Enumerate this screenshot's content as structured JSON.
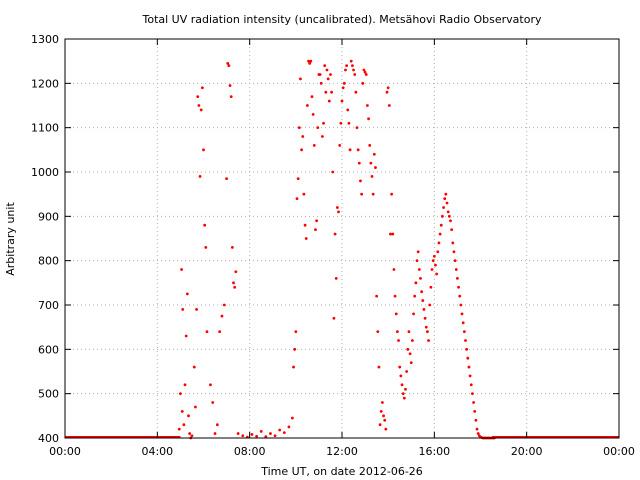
{
  "chart_data": {
    "type": "scatter",
    "title": "Total UV radiation intensity (uncalibrated). Metsähovi Radio Observatory",
    "xlabel": "Time UT, on date 2012-06-26",
    "ylabel": "Arbitrary unit",
    "xlim": [
      0,
      24
    ],
    "ylim": [
      400,
      1300
    ],
    "x_ticks": [
      {
        "value": 0,
        "label": "00:00"
      },
      {
        "value": 4,
        "label": "04:00"
      },
      {
        "value": 8,
        "label": "08:00"
      },
      {
        "value": 12,
        "label": "12:00"
      },
      {
        "value": 16,
        "label": "16:00"
      },
      {
        "value": 20,
        "label": "20:00"
      },
      {
        "value": 24,
        "label": "00:00"
      }
    ],
    "y_ticks": [
      400,
      500,
      600,
      700,
      800,
      900,
      1000,
      1100,
      1200,
      1300
    ],
    "grid": true,
    "legend": "none",
    "marker_color": "#ff0000",
    "series": [
      {
        "x_hours": [
          4.95,
          5.0,
          5.05,
          5.08,
          5.1,
          5.15,
          5.2,
          5.25,
          5.3,
          5.35,
          5.4,
          5.45,
          5.5,
          5.6,
          5.65,
          5.7,
          5.75,
          5.8,
          5.85,
          5.9,
          5.95,
          6.0,
          6.05,
          6.1,
          6.15,
          6.3,
          6.4,
          6.5,
          6.6,
          6.7,
          6.8,
          6.9,
          7.0,
          7.05,
          7.1,
          7.15,
          7.2,
          7.25,
          7.3,
          7.35,
          7.4,
          7.5,
          7.7,
          7.9,
          8.1,
          8.3,
          8.5,
          8.7,
          8.9,
          9.1,
          9.3,
          9.5,
          9.7,
          9.85,
          9.9,
          9.95,
          10.0,
          10.05,
          10.1,
          10.15,
          10.2,
          10.25,
          10.3,
          10.35,
          10.4,
          10.45,
          10.5,
          10.55,
          10.6,
          10.65,
          10.7,
          10.75,
          10.8,
          10.85,
          10.9,
          10.95,
          11.0,
          11.05,
          11.1,
          11.15,
          11.2,
          11.25,
          11.3,
          11.35,
          11.4,
          11.45,
          11.5,
          11.55,
          11.6,
          11.65,
          11.7,
          11.75,
          11.8,
          11.85,
          11.9,
          11.95,
          12.0,
          12.05,
          12.1,
          12.15,
          12.2,
          12.25,
          12.3,
          12.35,
          12.4,
          12.45,
          12.5,
          12.55,
          12.6,
          12.65,
          12.7,
          12.75,
          12.8,
          12.85,
          12.9,
          12.95,
          13.0,
          13.05,
          13.1,
          13.15,
          13.2,
          13.25,
          13.3,
          13.35,
          13.4,
          13.45,
          13.5,
          13.55,
          13.6,
          13.65,
          13.7,
          13.75,
          13.8,
          13.85,
          13.9,
          13.95,
          14.0,
          14.05,
          14.1,
          14.15,
          14.2,
          14.25,
          14.3,
          14.35,
          14.4,
          14.45,
          14.5,
          14.55,
          14.6,
          14.65,
          14.7,
          14.75,
          14.8,
          14.85,
          14.9,
          14.95,
          15.0,
          15.05,
          15.1,
          15.15,
          15.2,
          15.25,
          15.3,
          15.35,
          15.4,
          15.45,
          15.5,
          15.55,
          15.6,
          15.65,
          15.7,
          15.75,
          15.8,
          15.85,
          15.9,
          15.95,
          16.0,
          16.05,
          16.1,
          16.15,
          16.2,
          16.25,
          16.3,
          16.35,
          16.4,
          16.45,
          16.5,
          16.55,
          16.6,
          16.65,
          16.7,
          16.75,
          16.8,
          16.85,
          16.9,
          16.95,
          17.0,
          17.05,
          17.1,
          17.15,
          17.2,
          17.25,
          17.3,
          17.35,
          17.4,
          17.45,
          17.5,
          17.55,
          17.6,
          17.65,
          17.7,
          17.75,
          17.8,
          17.85,
          17.9,
          17.95,
          18.0,
          18.05,
          18.1,
          18.15,
          18.2,
          18.25,
          18.3,
          18.35,
          18.4,
          18.45,
          18.5,
          18.55,
          18.6
        ],
        "values": [
          420,
          500,
          780,
          460,
          690,
          430,
          520,
          630,
          725,
          450,
          410,
          400,
          405,
          560,
          470,
          690,
          1170,
          1150,
          990,
          1140,
          1190,
          1050,
          880,
          830,
          640,
          520,
          480,
          410,
          430,
          640,
          675,
          700,
          985,
          1245,
          1240,
          1195,
          1170,
          830,
          750,
          740,
          775,
          410,
          405,
          402,
          408,
          404,
          415,
          403,
          410,
          405,
          418,
          412,
          425,
          445,
          560,
          600,
          640,
          940,
          985,
          1100,
          1210,
          1050,
          1080,
          950,
          880,
          850,
          1150,
          1250,
          1245,
          1250,
          1170,
          1130,
          1060,
          870,
          890,
          1100,
          1220,
          1220,
          1200,
          1080,
          1110,
          1240,
          1180,
          1230,
          1210,
          1160,
          1220,
          1180,
          1000,
          670,
          860,
          760,
          920,
          910,
          1060,
          1110,
          1160,
          1190,
          1200,
          1230,
          1240,
          1140,
          1110,
          1050,
          1250,
          1240,
          1230,
          1220,
          1180,
          1100,
          1050,
          1020,
          980,
          950,
          1200,
          1230,
          1225,
          1220,
          1150,
          1120,
          1060,
          1020,
          990,
          950,
          1040,
          1010,
          720,
          640,
          560,
          430,
          460,
          480,
          450,
          440,
          420,
          1180,
          1190,
          1150,
          860,
          950,
          860,
          780,
          720,
          680,
          640,
          620,
          560,
          540,
          520,
          500,
          490,
          510,
          550,
          600,
          640,
          590,
          570,
          620,
          680,
          720,
          750,
          800,
          820,
          780,
          760,
          730,
          710,
          690,
          670,
          650,
          640,
          620,
          700,
          740,
          780,
          800,
          810,
          790,
          770,
          820,
          840,
          860,
          880,
          900,
          920,
          940,
          950,
          930,
          910,
          900,
          890,
          870,
          840,
          820,
          800,
          780,
          760,
          740,
          720,
          700,
          680,
          660,
          640,
          620,
          600,
          580,
          560,
          540,
          520,
          500,
          480,
          460,
          440,
          420,
          410,
          405,
          402,
          401,
          400,
          400,
          400,
          400,
          400,
          400,
          400,
          400,
          400,
          400,
          400
        ]
      }
    ]
  }
}
